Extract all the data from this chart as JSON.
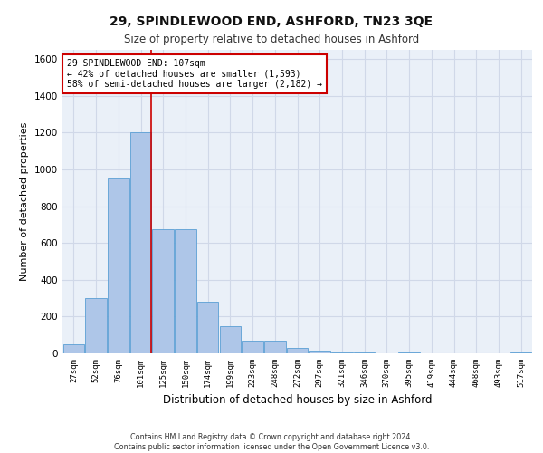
{
  "title1": "29, SPINDLEWOOD END, ASHFORD, TN23 3QE",
  "title2": "Size of property relative to detached houses in Ashford",
  "xlabel": "Distribution of detached houses by size in Ashford",
  "ylabel": "Number of detached properties",
  "footnote1": "Contains HM Land Registry data © Crown copyright and database right 2024.",
  "footnote2": "Contains public sector information licensed under the Open Government Licence v3.0.",
  "categories": [
    "27sqm",
    "52sqm",
    "76sqm",
    "101sqm",
    "125sqm",
    "150sqm",
    "174sqm",
    "199sqm",
    "223sqm",
    "248sqm",
    "272sqm",
    "297sqm",
    "321sqm",
    "346sqm",
    "370sqm",
    "395sqm",
    "419sqm",
    "444sqm",
    "468sqm",
    "493sqm",
    "517sqm"
  ],
  "values": [
    50,
    300,
    950,
    1200,
    675,
    675,
    280,
    150,
    70,
    70,
    30,
    15,
    5,
    5,
    0,
    5,
    0,
    0,
    0,
    0,
    5
  ],
  "bar_color": "#aec6e8",
  "bar_edge_color": "#5a9fd4",
  "grid_color": "#d0d8e8",
  "background_color": "#eaf0f8",
  "red_line_label": "29 SPINDLEWOOD END: 107sqm",
  "annotation_line1": "← 42% of detached houses are smaller (1,593)",
  "annotation_line2": "58% of semi-detached houses are larger (2,182) →",
  "ylim": [
    0,
    1650
  ],
  "yticks": [
    0,
    200,
    400,
    600,
    800,
    1000,
    1200,
    1400,
    1600
  ]
}
